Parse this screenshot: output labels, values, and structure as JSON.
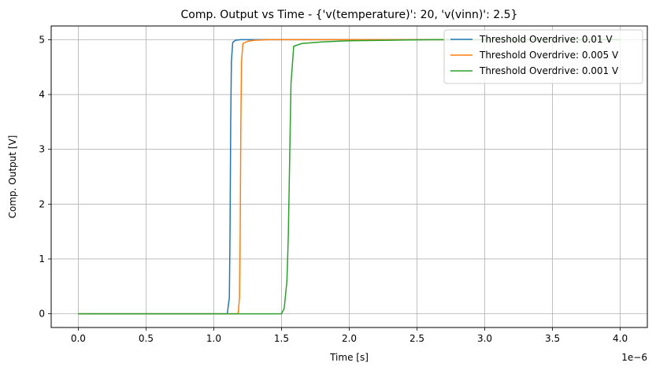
{
  "chart_data": {
    "type": "line",
    "title": "Comp. Output vs Time - {'v(temperature)': 20, 'v(vinn)': 2.5}",
    "xlabel": "Time [s]",
    "ylabel": "Comp. Output [V]",
    "x_offset_label": "1e−6",
    "xlim": [
      -2e-07,
      4.2e-06
    ],
    "ylim": [
      -0.25,
      5.25
    ],
    "x_ticks": [
      0,
      5e-07,
      1e-06,
      1.5e-06,
      2e-06,
      2.5e-06,
      3e-06,
      3.5e-06,
      4e-06
    ],
    "x_tick_labels": [
      "0.0",
      "0.5",
      "1.0",
      "1.5",
      "2.0",
      "2.5",
      "3.0",
      "3.5",
      "4.0"
    ],
    "y_ticks": [
      0,
      1,
      2,
      3,
      4,
      5
    ],
    "y_tick_labels": [
      "0",
      "1",
      "2",
      "3",
      "4",
      "5"
    ],
    "grid": true,
    "legend_position": "top-right",
    "series": [
      {
        "name": "Threshold Overdrive: 0.01 V",
        "color": "#1f77b4",
        "x": [
          0,
          1.1e-06,
          1.115e-06,
          1.12e-06,
          1.125e-06,
          1.13e-06,
          1.14e-06,
          1.16e-06,
          1.2e-06,
          1.3e-06,
          2e-06,
          3e-06,
          4e-06
        ],
        "values": [
          0,
          0,
          0.3,
          1.5,
          3.5,
          4.6,
          4.95,
          4.99,
          5.0,
          5.0,
          5.0,
          5.0,
          5.0
        ]
      },
      {
        "name": "Threshold Overdrive: 0.005 V",
        "color": "#ff7f0e",
        "x": [
          0,
          1.18e-06,
          1.19e-06,
          1.195e-06,
          1.2e-06,
          1.205e-06,
          1.215e-06,
          1.25e-06,
          1.3e-06,
          1.4e-06,
          2e-06,
          3e-06,
          4e-06
        ],
        "values": [
          0,
          0,
          0.3,
          1.5,
          3.5,
          4.6,
          4.93,
          4.97,
          4.99,
          5.0,
          5.0,
          5.0,
          5.0
        ]
      },
      {
        "name": "Threshold Overdrive: 0.001 V",
        "color": "#2ca02c",
        "x": [
          0,
          1.5e-06,
          1.52e-06,
          1.54e-06,
          1.55e-06,
          1.56e-06,
          1.57e-06,
          1.59e-06,
          1.65e-06,
          1.8e-06,
          2e-06,
          2.3e-06,
          2.6e-06,
          3e-06,
          3.5e-06,
          4e-06
        ],
        "values": [
          0,
          0,
          0.1,
          0.6,
          1.4,
          2.8,
          4.2,
          4.88,
          4.93,
          4.96,
          4.98,
          4.99,
          5.0,
          5.0,
          5.0,
          5.0
        ]
      }
    ]
  }
}
